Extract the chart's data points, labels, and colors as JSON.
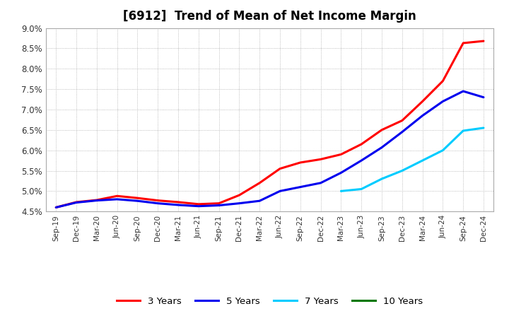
{
  "title": "[6912]  Trend of Mean of Net Income Margin",
  "background_color": "#ffffff",
  "grid_color": "#aaaaaa",
  "x_labels": [
    "Sep-19",
    "Dec-19",
    "Mar-20",
    "Jun-20",
    "Sep-20",
    "Dec-20",
    "Mar-21",
    "Jun-21",
    "Sep-21",
    "Dec-21",
    "Mar-22",
    "Jun-22",
    "Sep-22",
    "Dec-22",
    "Mar-23",
    "Jun-23",
    "Sep-23",
    "Dec-23",
    "Mar-24",
    "Jun-24",
    "Sep-24",
    "Dec-24"
  ],
  "ylim": [
    0.045,
    0.09
  ],
  "yticks": [
    0.045,
    0.05,
    0.055,
    0.06,
    0.065,
    0.07,
    0.075,
    0.08,
    0.085,
    0.09
  ],
  "series": {
    "3 Years": {
      "color": "#ff0000",
      "linewidth": 2.2,
      "values": [
        0.046,
        0.0473,
        0.0478,
        0.0488,
        0.0483,
        0.0477,
        0.0473,
        0.0468,
        0.047,
        0.049,
        0.052,
        0.0555,
        0.057,
        0.0578,
        0.059,
        0.0615,
        0.065,
        0.0673,
        0.072,
        0.077,
        0.0863,
        0.0868
      ]
    },
    "5 Years": {
      "color": "#0000ee",
      "linewidth": 2.2,
      "values": [
        0.046,
        0.0472,
        0.0477,
        0.048,
        0.0476,
        0.047,
        0.0466,
        0.0463,
        0.0465,
        0.047,
        0.0476,
        0.05,
        0.051,
        0.052,
        0.0545,
        0.0575,
        0.0607,
        0.0645,
        0.0685,
        0.072,
        0.0745,
        0.073
      ]
    },
    "7 Years": {
      "color": "#00ccff",
      "linewidth": 2.2,
      "values": [
        null,
        null,
        null,
        null,
        null,
        null,
        null,
        null,
        null,
        null,
        null,
        null,
        null,
        null,
        0.05,
        0.0505,
        0.053,
        0.055,
        0.0575,
        0.06,
        0.0648,
        0.0655
      ]
    },
    "10 Years": {
      "color": "#007700",
      "linewidth": 2.2,
      "values": [
        null,
        null,
        null,
        null,
        null,
        null,
        null,
        null,
        null,
        null,
        null,
        null,
        null,
        null,
        null,
        null,
        null,
        null,
        null,
        null,
        null,
        null
      ]
    }
  }
}
